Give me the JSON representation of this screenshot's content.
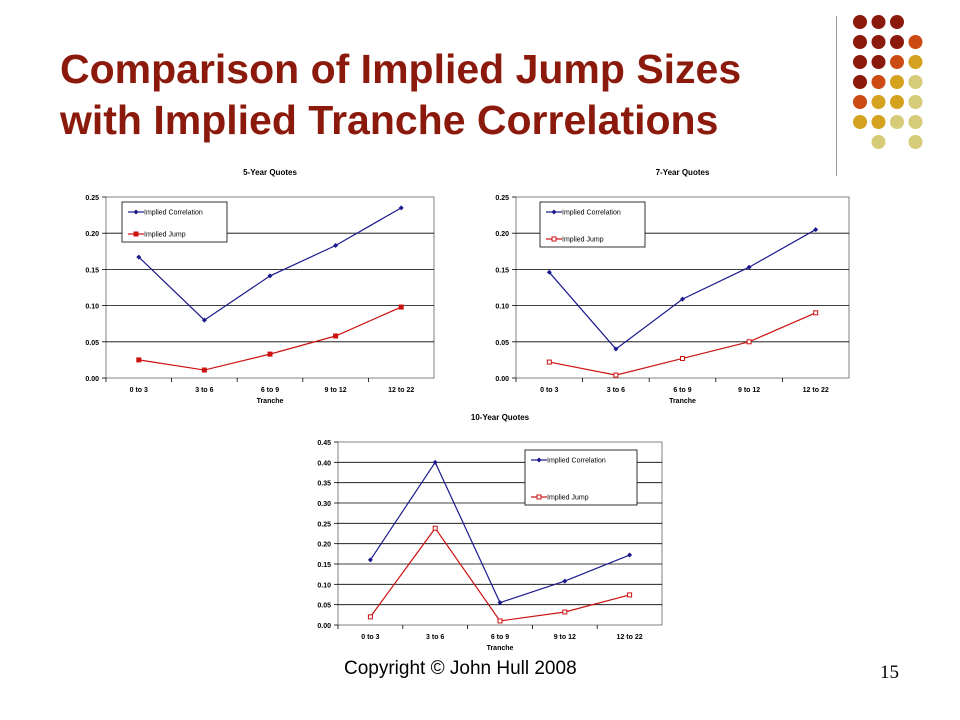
{
  "slide": {
    "title_line1": "Comparison of Implied Jump Sizes",
    "title_line2": "with Implied Tranche Correlations",
    "footer": "Copyright © John Hull  2008",
    "page_number": "15",
    "colors": {
      "title": "#8b1a0c",
      "correlation_series": "#1a1a8c",
      "jump_series": "#cc1111",
      "decor_dark_red": "#8b1a0c",
      "decor_orange": "#cc4a14",
      "decor_gold": "#d4a21e",
      "decor_olive": "#d6cc78"
    }
  },
  "chart_data": [
    {
      "type": "line",
      "title": "5-Year Quotes",
      "xlabel": "Tranche",
      "ylabel": "",
      "categories": [
        "0 to 3",
        "3 to 6",
        "6 to 9",
        "9 to 12",
        "12 to 22"
      ],
      "ylim": [
        0,
        0.25
      ],
      "yticks": [
        "0.00",
        "0.05",
        "0.10",
        "0.15",
        "0.20",
        "0.25"
      ],
      "grid": true,
      "legend_position": "top-left",
      "series": [
        {
          "name": "Implied Correlation",
          "color": "#1a1a8c",
          "values": [
            0.167,
            0.08,
            0.141,
            0.183,
            0.235
          ]
        },
        {
          "name": "Implied Jump",
          "color": "#cc1111",
          "values": [
            0.025,
            0.011,
            0.033,
            0.058,
            0.098
          ]
        }
      ]
    },
    {
      "type": "line",
      "title": "7-Year Quotes",
      "xlabel": "Tranche",
      "ylabel": "",
      "categories": [
        "0 to 3",
        "3 to 6",
        "6 to 9",
        "9 to 12",
        "12 to 22"
      ],
      "ylim": [
        0,
        0.25
      ],
      "yticks": [
        "0.00",
        "0.05",
        "0.10",
        "0.15",
        "0.20",
        "0.25"
      ],
      "grid": true,
      "legend_position": "top-left",
      "series": [
        {
          "name": "Implied Correlation",
          "color": "#1a1a8c",
          "values": [
            0.146,
            0.04,
            0.109,
            0.153,
            0.205
          ]
        },
        {
          "name": "Implied Jump",
          "color": "#cc1111",
          "values": [
            0.022,
            0.004,
            0.027,
            0.05,
            0.09
          ]
        }
      ]
    },
    {
      "type": "line",
      "title": "10-Year Quotes",
      "xlabel": "Tranche",
      "ylabel": "",
      "categories": [
        "0 to 3",
        "3 to 6",
        "6 to 9",
        "9 to 12",
        "12 to 22"
      ],
      "ylim": [
        0,
        0.45
      ],
      "yticks": [
        "0.00",
        "0.05",
        "0.10",
        "0.15",
        "0.20",
        "0.25",
        "0.30",
        "0.35",
        "0.40",
        "0.45"
      ],
      "grid": true,
      "legend_position": "top-right",
      "series": [
        {
          "name": "Implied Correlation",
          "color": "#1a1a8c",
          "values": [
            0.16,
            0.4,
            0.055,
            0.108,
            0.172
          ]
        },
        {
          "name": "Implied Jump",
          "color": "#cc1111",
          "values": [
            0.02,
            0.238,
            0.01,
            0.032,
            0.074
          ]
        }
      ]
    }
  ]
}
